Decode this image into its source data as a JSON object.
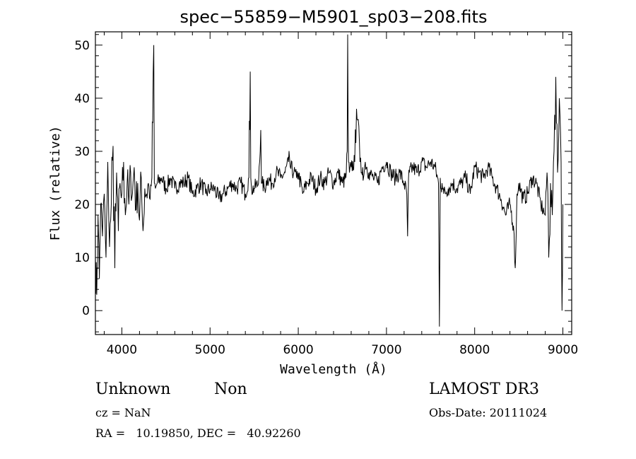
{
  "chart_data": {
    "type": "line",
    "title": "spec−55859−M5901_sp03−208.fits",
    "xlabel": "Wavelength (Å)",
    "ylabel": "Flux (relative)",
    "xlim": [
      3700,
      9100
    ],
    "ylim": [
      -4.5,
      52.5
    ],
    "xticks": [
      4000,
      5000,
      6000,
      7000,
      8000,
      9000
    ],
    "yticks": [
      0,
      10,
      20,
      30,
      40,
      50
    ],
    "grid": false,
    "series": [
      {
        "x": [
          3700,
          3715,
          3730,
          3745,
          3760,
          3780,
          3800,
          3820,
          3840,
          3860,
          3880,
          3900,
          3920,
          3940,
          3960,
          3980,
          4000,
          4020,
          4040,
          4060,
          4080,
          4100,
          4120,
          4140,
          4160,
          4180,
          4200,
          4220,
          4240,
          4260,
          4280,
          4300,
          4320,
          4340,
          4355,
          4362,
          4368,
          4380,
          4400,
          4450,
          4500,
          4550,
          4600,
          4650,
          4700,
          4750,
          4800,
          4850,
          4900,
          4950,
          5000,
          5050,
          5100,
          5150,
          5200,
          5250,
          5300,
          5350,
          5400,
          5440,
          5455,
          5462,
          5470,
          5500,
          5550,
          5575,
          5582,
          5590,
          5620,
          5650,
          5700,
          5750,
          5800,
          5850,
          5890,
          5900,
          5910,
          5950,
          5980,
          6000,
          6050,
          6100,
          6150,
          6200,
          6250,
          6300,
          6350,
          6400,
          6450,
          6500,
          6540,
          6555,
          6560,
          6565,
          6570,
          6580,
          6600,
          6640,
          6660,
          6680,
          6700,
          6720,
          6730,
          6740,
          6760,
          6800,
          6850,
          6900,
          6950,
          7000,
          7050,
          7100,
          7150,
          7200,
          7230,
          7240,
          7250,
          7260,
          7300,
          7350,
          7400,
          7450,
          7500,
          7550,
          7590,
          7600,
          7610,
          7620,
          7630,
          7650,
          7700,
          7750,
          7800,
          7850,
          7900,
          7950,
          8000,
          8050,
          8100,
          8150,
          8200,
          8250,
          8300,
          8350,
          8400,
          8440,
          8460,
          8470,
          8480,
          8500,
          8550,
          8600,
          8650,
          8700,
          8750,
          8800,
          8820,
          8830,
          8840,
          8860,
          8880,
          8900,
          8920,
          8940,
          8960,
          8980,
          8990,
          9000
        ],
        "values": [
          10,
          3,
          18,
          6,
          20,
          14,
          22,
          10,
          28,
          12,
          20,
          31,
          8,
          26,
          15,
          24,
          22,
          28,
          18,
          24,
          20,
          26,
          22,
          27,
          19,
          24,
          17,
          25,
          15,
          23,
          22,
          24,
          21,
          25,
          45,
          50,
          24,
          23,
          24,
          25,
          23,
          25,
          23,
          24,
          24,
          25,
          22,
          23,
          24,
          22,
          23,
          23,
          21,
          22,
          23,
          24,
          23,
          24,
          22,
          25,
          45,
          25,
          23,
          23,
          24,
          34,
          24,
          24,
          23,
          25,
          24,
          26,
          25,
          26,
          28,
          29,
          27,
          26,
          25,
          26,
          22,
          24,
          25,
          23,
          25,
          24,
          26,
          24,
          26,
          24,
          25,
          30,
          52,
          36,
          28,
          26,
          27,
          28,
          38,
          36,
          28,
          26,
          27,
          25,
          28,
          26,
          25,
          24,
          27,
          28,
          26,
          25,
          26,
          24,
          22,
          14,
          25,
          26,
          27,
          26,
          28,
          27,
          28,
          27,
          24,
          -3,
          25,
          23,
          24,
          22,
          23,
          24,
          23,
          24,
          25,
          22,
          27,
          26,
          25,
          27,
          25,
          23,
          21,
          18,
          20,
          16,
          8,
          14,
          22,
          24,
          21,
          22,
          25,
          24,
          20,
          18,
          26,
          22,
          10,
          24,
          18,
          30,
          44,
          26,
          40,
          28,
          0,
          20
        ]
      }
    ]
  },
  "info": {
    "object_class": "Unknown",
    "object_subclass": "Non",
    "survey": "LAMOST DR3",
    "redshift": "cz = NaN",
    "obs_date": "Obs-Date: 20111024",
    "coords": "RA =   10.19850, DEC =   40.92260"
  }
}
